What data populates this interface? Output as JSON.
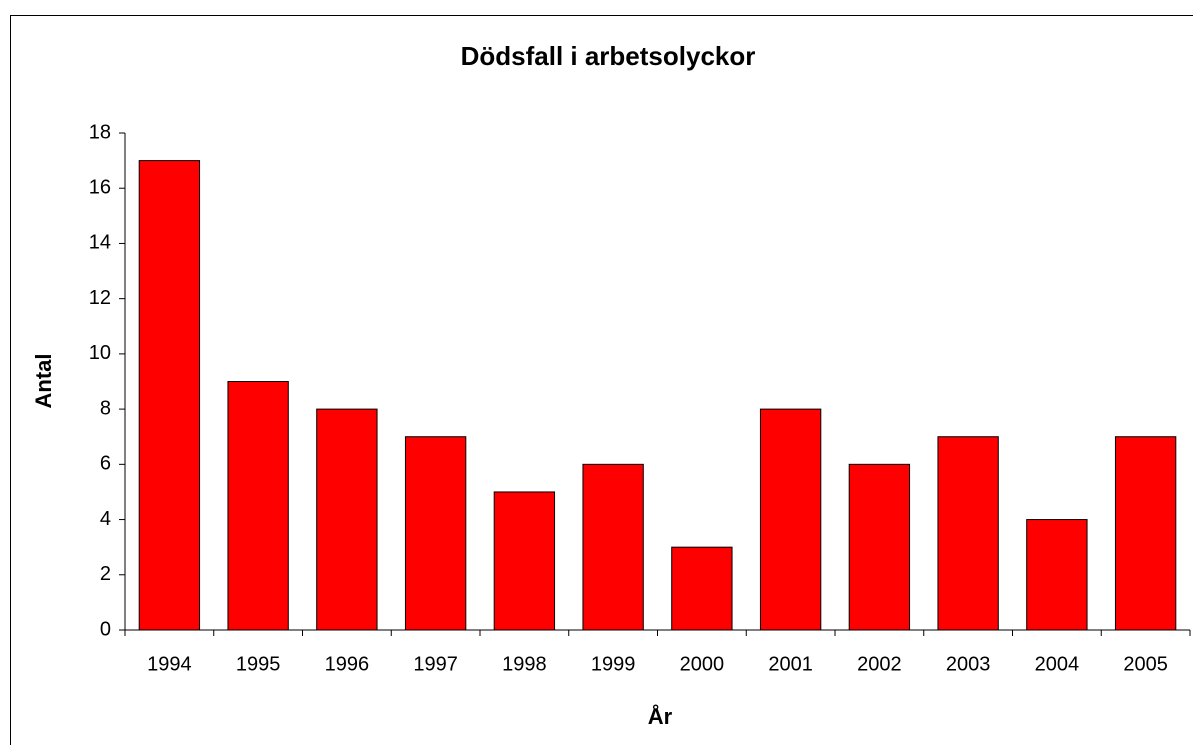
{
  "chart_data": {
    "type": "bar",
    "title": "Dödsfall i arbetsolyckor",
    "x_label": "År",
    "y_label": "Antal",
    "categories": [
      "1994",
      "1995",
      "1996",
      "1997",
      "1998",
      "1999",
      "2000",
      "2001",
      "2002",
      "2003",
      "2004",
      "2005"
    ],
    "values": [
      17,
      9,
      8,
      7,
      5,
      6,
      3,
      8,
      6,
      7,
      4,
      7
    ],
    "color": "#ff0000",
    "ylim": [
      0,
      18
    ],
    "yticks": [
      0,
      2,
      4,
      6,
      8,
      10,
      12,
      14,
      16,
      18
    ],
    "grid": false
  }
}
